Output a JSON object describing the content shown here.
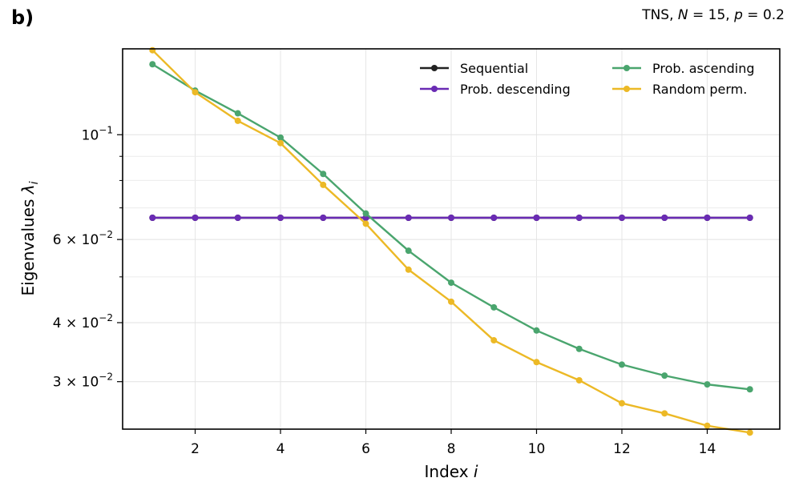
{
  "panel_label": "b)",
  "chart_data": {
    "type": "line",
    "title": "TNS, N = 15, p = 0.2",
    "title_parts": {
      "prefix": "TNS, ",
      "n_sym": "N",
      "n_val": " = 15, ",
      "p_sym": "p",
      "p_val": " = 0.2"
    },
    "xlabel": "Index",
    "xlabel_sym": "i",
    "ylabel": "Eigenvalues",
    "ylabel_sym": "λ",
    "ylabel_sub": "i",
    "yscale": "log",
    "xlim": [
      0.3,
      15.7
    ],
    "ylim": [
      0.0238,
      0.152
    ],
    "grid": true,
    "legend_position": "top-right",
    "x": [
      1,
      2,
      3,
      4,
      5,
      6,
      7,
      8,
      9,
      10,
      11,
      12,
      13,
      14,
      15
    ],
    "xticks": [
      {
        "value": 2,
        "label": "2"
      },
      {
        "value": 4,
        "label": "4"
      },
      {
        "value": 6,
        "label": "6"
      },
      {
        "value": 8,
        "label": "8"
      },
      {
        "value": 10,
        "label": "10"
      },
      {
        "value": 12,
        "label": "12"
      },
      {
        "value": 14,
        "label": "14"
      }
    ],
    "yticks_major": [
      {
        "value": 0.1,
        "mant": "",
        "base": "10",
        "exp": "−1"
      },
      {
        "value": 0.06,
        "mant": "6 × ",
        "base": "10",
        "exp": "−2"
      },
      {
        "value": 0.04,
        "mant": "4 × ",
        "base": "10",
        "exp": "−2"
      },
      {
        "value": 0.03,
        "mant": "3 × ",
        "base": "10",
        "exp": "−2"
      }
    ],
    "yticks_minor": [
      0.05,
      0.07,
      0.08,
      0.09
    ],
    "series": [
      {
        "name": "Sequential",
        "color": "#222222",
        "values": [
          0.0667,
          0.0667,
          0.0667,
          0.0667,
          0.0667,
          0.0667,
          0.0667,
          0.0667,
          0.0667,
          0.0667,
          0.0667,
          0.0667,
          0.0667,
          0.0667,
          0.0667
        ]
      },
      {
        "name": "Prob. descending",
        "color": "#6a2bb4",
        "values": [
          0.0667,
          0.0667,
          0.0667,
          0.0667,
          0.0667,
          0.0667,
          0.0667,
          0.0667,
          0.0667,
          0.0667,
          0.0667,
          0.0667,
          0.0667,
          0.0667,
          0.0667
        ]
      },
      {
        "name": "Prob. ascending",
        "color": "#4aa56e",
        "values": [
          0.141,
          0.124,
          0.111,
          0.0986,
          0.0826,
          0.0681,
          0.0568,
          0.0486,
          0.0431,
          0.0385,
          0.0352,
          0.0326,
          0.0309,
          0.0296,
          0.0289
        ]
      },
      {
        "name": "Random perm.",
        "color": "#ecb926",
        "values": [
          0.151,
          0.123,
          0.107,
          0.096,
          0.0783,
          0.0648,
          0.0518,
          0.0443,
          0.0367,
          0.033,
          0.0302,
          0.027,
          0.0257,
          0.0242,
          0.0234
        ]
      }
    ]
  }
}
